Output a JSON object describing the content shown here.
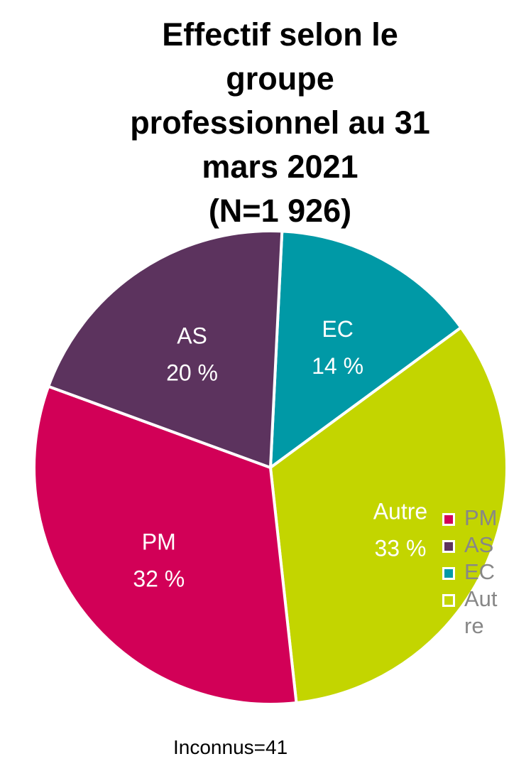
{
  "chart_data": {
    "type": "pie",
    "title": "Effectif selon le groupe professionnel au 31 mars 2021 (N=1 926)",
    "title_lines": [
      "Effectif selon le",
      "groupe",
      "professionnel au 31",
      "mars 2021",
      "(N=1 926)"
    ],
    "slices": [
      {
        "name": "PM",
        "value": 32,
        "label": "32 %",
        "color": "#d20057"
      },
      {
        "name": "AS",
        "value": 20,
        "label": "20 %",
        "color": "#5c335e"
      },
      {
        "name": "EC",
        "value": 14,
        "label": "14 %",
        "color": "#0099a6"
      },
      {
        "name": "Autre",
        "value": 33,
        "label": "33 %",
        "color": "#c3d500"
      }
    ],
    "legend": {
      "placement": "right",
      "entries": [
        {
          "name": "PM",
          "color": "#d20057"
        },
        {
          "name": "AS",
          "color": "#5c335e"
        },
        {
          "name": "EC",
          "color": "#0099a6"
        },
        {
          "name": "Autre",
          "color": "#c3d500"
        }
      ]
    },
    "footnote": "Inconnus=41"
  }
}
